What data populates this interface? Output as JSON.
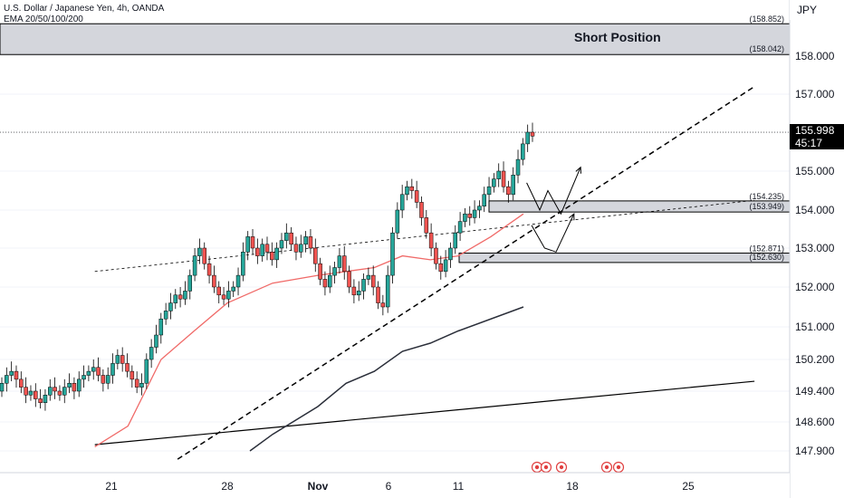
{
  "header": {
    "symbol_title": "U.S. Dollar / Japanese Yen, 4h, OANDA",
    "indicator": "EMA 20/50/100/200",
    "currency": "JPY"
  },
  "last_price": {
    "value": "155.998",
    "countdown": "45:17"
  },
  "zone_label": "Short Position",
  "colors": {
    "up": "#26a69a",
    "down": "#ef5350",
    "zone_fill": "#d4d6dc",
    "ema_red": "#f06a68",
    "ema_dark": "#2a2e39",
    "dashed": "#000000"
  },
  "chart_data": {
    "type": "candlestick",
    "title": "U.S. Dollar / Japanese Yen, 4h, OANDA",
    "y_axis_ticks": [
      "158.000",
      "157.000",
      "156.000",
      "155.000",
      "154.000",
      "153.000",
      "152.000",
      "151.000",
      "150.200",
      "149.400",
      "148.600",
      "147.900"
    ],
    "y_axis_values": [
      158.0,
      157.0,
      156.0,
      155.0,
      154.0,
      153.0,
      152.0,
      151.0,
      150.2,
      149.4,
      148.6,
      147.9
    ],
    "x_axis_ticks": [
      {
        "label": "21",
        "x": 21
      },
      {
        "label": "28",
        "x": 28
      },
      {
        "label": "Nov",
        "x": 32
      },
      {
        "label": "6",
        "x": 37
      },
      {
        "label": "11",
        "x": 42
      },
      {
        "label": "18",
        "x": 49
      },
      {
        "label": "25",
        "x": 56
      }
    ],
    "x_range": [
      20.0,
      60.0
    ],
    "zones": [
      {
        "label": "Short Position",
        "high": 158.852,
        "low": 158.042,
        "high_label": "(158.852)",
        "low_label": "(158.042)"
      },
      {
        "high": 154.235,
        "low": 153.949,
        "high_label": "(154.235)",
        "low_label": "(153.949)"
      },
      {
        "high": 152.871,
        "low": 152.63,
        "high_label": "(152.871)",
        "low_label": "(152.630)"
      }
    ],
    "candles_close": [
      149.6,
      149.8,
      149.9,
      149.7,
      149.5,
      149.3,
      149.4,
      149.2,
      149.1,
      149.3,
      149.5,
      149.4,
      149.3,
      149.5,
      149.6,
      149.4,
      149.7,
      149.8,
      149.9,
      150.0,
      149.8,
      149.6,
      149.8,
      150.1,
      150.3,
      150.1,
      149.9,
      149.7,
      149.5,
      149.6,
      150.2,
      150.5,
      150.8,
      151.2,
      151.4,
      151.6,
      151.8,
      151.7,
      151.9,
      152.3,
      152.8,
      153.0,
      152.6,
      152.3,
      152.0,
      151.8,
      151.7,
      151.9,
      152.0,
      152.3,
      152.9,
      153.3,
      153.0,
      152.8,
      153.1,
      152.9,
      152.7,
      153.0,
      153.2,
      153.4,
      153.1,
      152.9,
      153.1,
      153.3,
      153.0,
      152.6,
      152.2,
      152.0,
      152.3,
      152.5,
      152.8,
      152.4,
      152.0,
      151.8,
      151.9,
      152.2,
      152.3,
      152.0,
      151.6,
      151.5,
      152.3,
      153.4,
      154.0,
      154.4,
      154.6,
      154.5,
      154.2,
      153.8,
      153.4,
      153.0,
      152.6,
      152.4,
      152.7,
      153.0,
      153.4,
      153.7,
      153.9,
      153.8,
      154.0,
      154.1,
      154.4,
      154.6,
      154.8,
      155.0,
      154.6,
      154.4,
      154.9,
      155.3,
      155.7,
      156.0,
      155.9
    ],
    "ema_red": [
      [
        20.0,
        148.0
      ],
      [
        22.0,
        148.5
      ],
      [
        24.0,
        150.2
      ],
      [
        26.0,
        150.9
      ],
      [
        28.0,
        151.6
      ],
      [
        30.0,
        152.1
      ],
      [
        32.0,
        152.3
      ],
      [
        34.0,
        152.4
      ],
      [
        36.0,
        152.5
      ],
      [
        38.0,
        152.8
      ],
      [
        40.0,
        152.7
      ],
      [
        42.0,
        152.8
      ],
      [
        44.0,
        153.3
      ],
      [
        46.0,
        153.9
      ]
    ],
    "ema_dark": [
      [
        29.0,
        147.9
      ],
      [
        30.0,
        148.3
      ],
      [
        32.0,
        149.0
      ],
      [
        34.0,
        149.6
      ],
      [
        36.0,
        149.9
      ],
      [
        38.0,
        150.4
      ],
      [
        40.0,
        150.6
      ],
      [
        42.0,
        150.9
      ],
      [
        46.0,
        151.5
      ]
    ],
    "trendlines": [
      {
        "style": "dashed",
        "from": [
          25.0,
          147.7
        ],
        "to": [
          60.0,
          157.2
        ]
      },
      {
        "style": "dotted",
        "from": [
          20.0,
          152.4
        ],
        "to": [
          60.0,
          154.25
        ]
      },
      {
        "style": "solid",
        "from": [
          20.0,
          148.05
        ],
        "to": [
          60.0,
          149.65
        ]
      }
    ],
    "projections": [
      [
        [
          46.2,
          154.7
        ],
        [
          47.0,
          154.0
        ],
        [
          47.5,
          154.5
        ],
        [
          48.3,
          153.9
        ],
        [
          49.5,
          155.1
        ]
      ],
      [
        [
          46.5,
          153.6
        ],
        [
          47.3,
          153.0
        ],
        [
          48.0,
          152.9
        ],
        [
          49.1,
          153.9
        ]
      ]
    ],
    "last_price": 155.998
  }
}
